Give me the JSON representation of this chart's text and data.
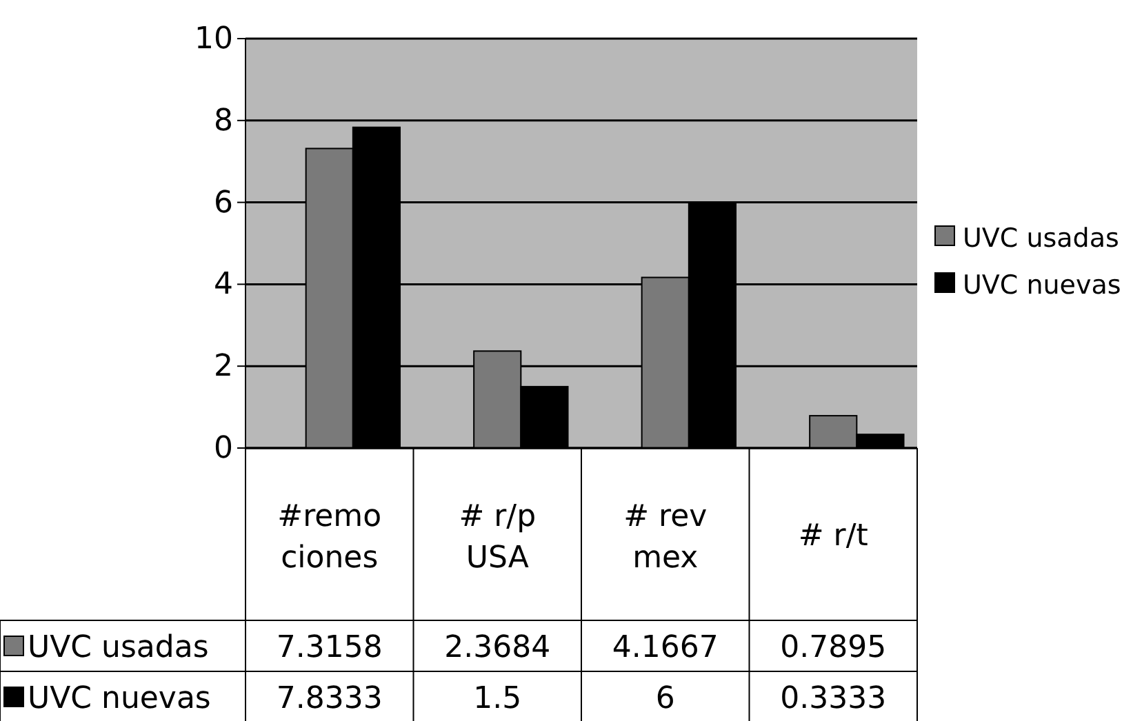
{
  "chart_data": {
    "type": "bar",
    "categories": [
      "#remociones",
      "# r/p USA",
      "# rev mex",
      "# r/t"
    ],
    "series": [
      {
        "name": "UVC usadas",
        "color": "#7a7a7a",
        "values": [
          7.3158,
          2.3684,
          4.1667,
          0.7895
        ]
      },
      {
        "name": "UVC nuevas",
        "color": "#000000",
        "values": [
          7.8333,
          1.5,
          6,
          0.3333
        ]
      }
    ],
    "ylim": [
      0,
      10
    ],
    "yticks": [
      0,
      2,
      4,
      6,
      8,
      10
    ],
    "grid": "y",
    "legend": "right",
    "data_labels": true
  }
}
